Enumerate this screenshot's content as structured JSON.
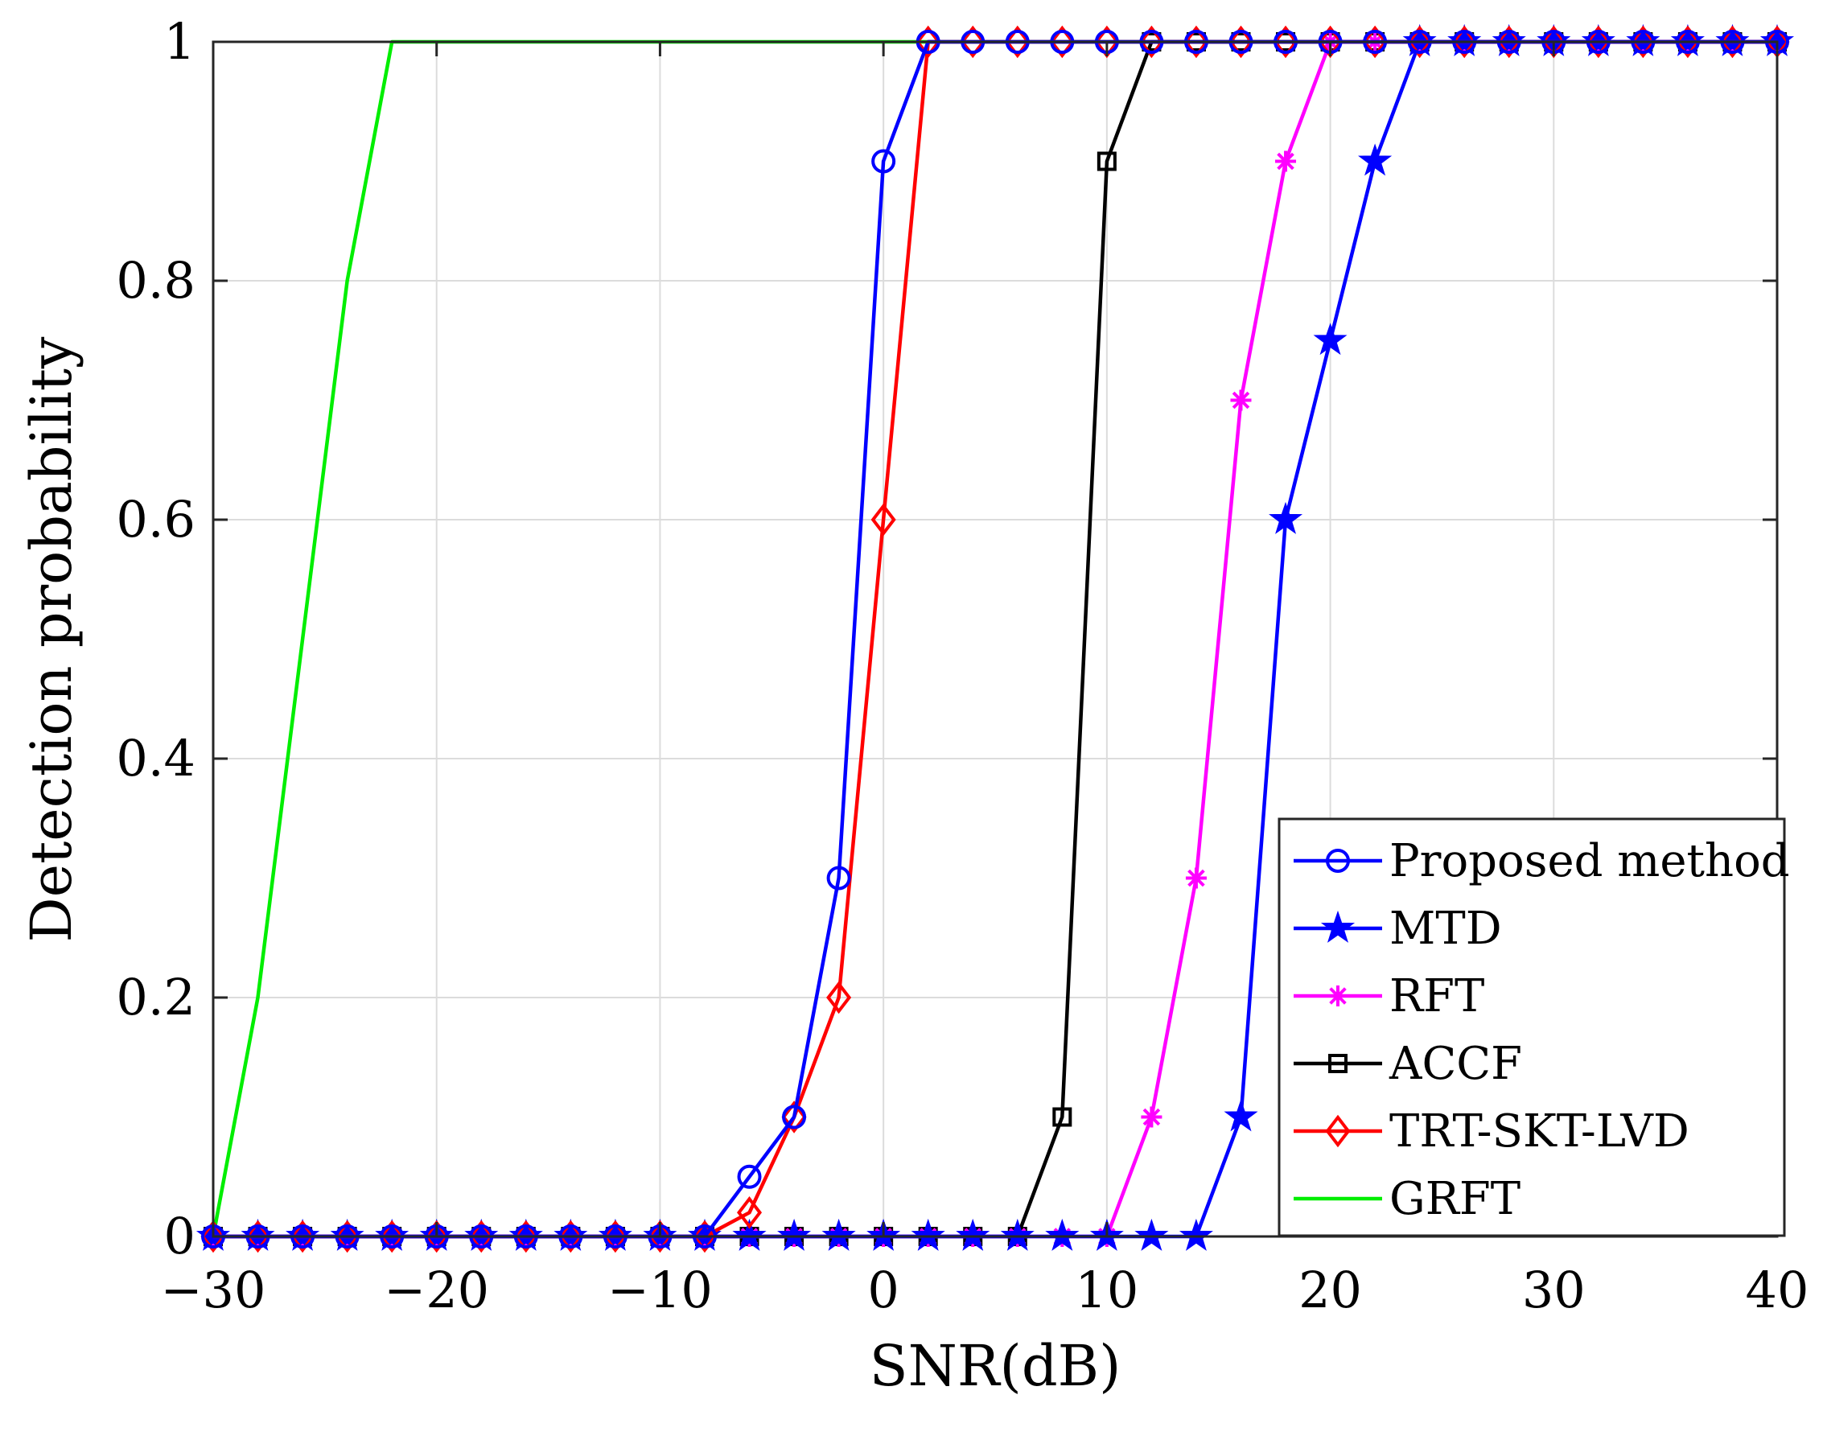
{
  "chart_data": {
    "type": "line",
    "title": "",
    "xlabel": "SNR(dB)",
    "ylabel": "Detection probability",
    "xlim": [
      -30,
      40
    ],
    "ylim": [
      0,
      1
    ],
    "xticks": [
      -30,
      -20,
      -10,
      0,
      10,
      20,
      30,
      40
    ],
    "xtick_labels": [
      "−30",
      "−20",
      "−10",
      "0",
      "10",
      "20",
      "30",
      "40"
    ],
    "yticks": [
      0,
      0.2,
      0.4,
      0.6,
      0.8,
      1
    ],
    "ytick_labels": [
      "0",
      "0.2",
      "0.4",
      "0.6",
      "0.8",
      "1"
    ],
    "grid": true,
    "legend_position": "bottom-right",
    "series": [
      {
        "name": "Proposed method",
        "color": "#0000ff",
        "marker": "circle",
        "x": [
          -30,
          -28,
          -26,
          -24,
          -22,
          -20,
          -18,
          -16,
          -14,
          -12,
          -10,
          -8,
          -6,
          -4,
          -2,
          0,
          2,
          4,
          6,
          8,
          10,
          12,
          14,
          16,
          18,
          20,
          22,
          24,
          26,
          28,
          30,
          32,
          34,
          36,
          38,
          40
        ],
        "y": [
          0,
          0,
          0,
          0,
          0,
          0,
          0,
          0,
          0,
          0,
          0,
          0,
          0.05,
          0.1,
          0.3,
          0.9,
          1,
          1,
          1,
          1,
          1,
          1,
          1,
          1,
          1,
          1,
          1,
          1,
          1,
          1,
          1,
          1,
          1,
          1,
          1,
          1
        ]
      },
      {
        "name": "MTD",
        "color": "#0000ff",
        "marker": "star",
        "x": [
          -30,
          -28,
          -26,
          -24,
          -22,
          -20,
          -18,
          -16,
          -14,
          -12,
          -10,
          -8,
          -6,
          -4,
          -2,
          0,
          2,
          4,
          6,
          8,
          10,
          12,
          14,
          16,
          18,
          20,
          22,
          24,
          26,
          28,
          30,
          32,
          34,
          36,
          38,
          40
        ],
        "y": [
          0,
          0,
          0,
          0,
          0,
          0,
          0,
          0,
          0,
          0,
          0,
          0,
          0,
          0,
          0,
          0,
          0,
          0,
          0,
          0,
          0,
          0,
          0,
          0.1,
          0.6,
          0.75,
          0.9,
          1,
          1,
          1,
          1,
          1,
          1,
          1,
          1,
          1
        ]
      },
      {
        "name": "RFT",
        "color": "#ff00ff",
        "marker": "asterisk",
        "x": [
          -30,
          -28,
          -26,
          -24,
          -22,
          -20,
          -18,
          -16,
          -14,
          -12,
          -10,
          -8,
          -6,
          -4,
          -2,
          0,
          2,
          4,
          6,
          8,
          10,
          12,
          14,
          16,
          18,
          20,
          22,
          24,
          26,
          28,
          30,
          32,
          34,
          36,
          38,
          40
        ],
        "y": [
          0,
          0,
          0,
          0,
          0,
          0,
          0,
          0,
          0,
          0,
          0,
          0,
          0,
          0,
          0,
          0,
          0,
          0,
          0,
          0,
          0,
          0.1,
          0.3,
          0.7,
          0.9,
          1,
          1,
          1,
          1,
          1,
          1,
          1,
          1,
          1,
          1,
          1
        ]
      },
      {
        "name": "ACCF",
        "color": "#000000",
        "marker": "square",
        "x": [
          -30,
          -28,
          -26,
          -24,
          -22,
          -20,
          -18,
          -16,
          -14,
          -12,
          -10,
          -8,
          -6,
          -4,
          -2,
          0,
          2,
          4,
          6,
          8,
          10,
          12,
          14,
          16,
          18,
          20,
          22,
          24,
          26,
          28,
          30,
          32,
          34,
          36,
          38,
          40
        ],
        "y": [
          0,
          0,
          0,
          0,
          0,
          0,
          0,
          0,
          0,
          0,
          0,
          0,
          0,
          0,
          0,
          0,
          0,
          0,
          0,
          0.1,
          0.9,
          1,
          1,
          1,
          1,
          1,
          1,
          1,
          1,
          1,
          1,
          1,
          1,
          1,
          1,
          1
        ]
      },
      {
        "name": "TRT-SKT-LVD",
        "color": "#ff0000",
        "marker": "diamond",
        "x": [
          -30,
          -28,
          -26,
          -24,
          -22,
          -20,
          -18,
          -16,
          -14,
          -12,
          -10,
          -8,
          -6,
          -4,
          -2,
          0,
          2,
          4,
          6,
          8,
          10,
          12,
          14,
          16,
          18,
          20,
          22,
          24,
          26,
          28,
          30,
          32,
          34,
          36,
          38,
          40
        ],
        "y": [
          0,
          0,
          0,
          0,
          0,
          0,
          0,
          0,
          0,
          0,
          0,
          0,
          0.02,
          0.1,
          0.2,
          0.6,
          1,
          1,
          1,
          1,
          1,
          1,
          1,
          1,
          1,
          1,
          1,
          1,
          1,
          1,
          1,
          1,
          1,
          1,
          1,
          1
        ]
      },
      {
        "name": "GRFT",
        "color": "#00ee00",
        "marker": "none",
        "x": [
          -30,
          -28,
          -26,
          -24,
          -22,
          -20,
          -18,
          -16,
          -14,
          -12,
          -10,
          -8,
          -6,
          -4,
          -2,
          0,
          2,
          4,
          6,
          8,
          10,
          12,
          14,
          16,
          18,
          20,
          22,
          24,
          26,
          28,
          30,
          32,
          34,
          36,
          38,
          40
        ],
        "y": [
          0,
          0.2,
          0.5,
          0.8,
          1,
          1,
          1,
          1,
          1,
          1,
          1,
          1,
          1,
          1,
          1,
          1,
          1,
          1,
          1,
          1,
          1,
          1,
          1,
          1,
          1,
          1,
          1,
          1,
          1,
          1,
          1,
          1,
          1,
          1,
          1,
          1
        ]
      }
    ]
  }
}
